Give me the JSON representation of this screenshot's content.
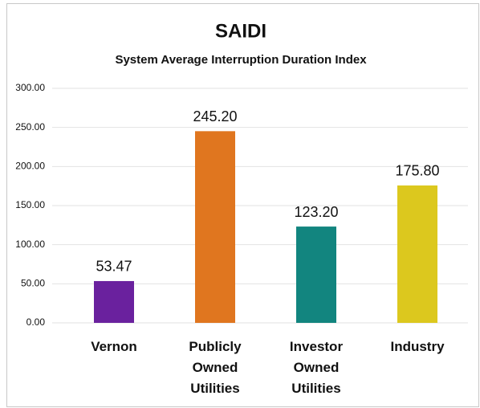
{
  "chart_data": {
    "type": "bar",
    "title": "SAIDI",
    "subtitle": "System Average Interruption Duration Index",
    "categories": [
      "Vernon",
      "Publicly Owned Utilities",
      "Investor Owned Utilities",
      "Industry"
    ],
    "values": [
      53.47,
      245.2,
      123.2,
      175.8
    ],
    "value_labels": [
      "53.47",
      "245.20",
      "123.20",
      "175.80"
    ],
    "colors": [
      "#6a219e",
      "#e0761f",
      "#12857f",
      "#dcc81e"
    ],
    "ylim": [
      0,
      300
    ],
    "yticks": [
      {
        "value": 0,
        "label": "0.00"
      },
      {
        "value": 50,
        "label": "50.00"
      },
      {
        "value": 100,
        "label": "100.00"
      },
      {
        "value": 150,
        "label": "150.00"
      },
      {
        "value": 200,
        "label": "200.00"
      },
      {
        "value": 250,
        "label": "250.00"
      },
      {
        "value": 300,
        "label": "300.00"
      }
    ],
    "grid": true
  }
}
